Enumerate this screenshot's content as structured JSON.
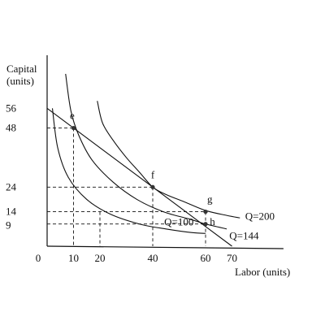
{
  "chart_data": {
    "type": "line",
    "title": "",
    "xlabel": "Labor (units)",
    "ylabel": "Capital (units)",
    "ylabel_lines": [
      "Capital",
      "(units)"
    ],
    "xlim": [
      0,
      90
    ],
    "ylim": [
      0,
      72
    ],
    "x_ticks": [
      {
        "value": 0,
        "label": "0"
      },
      {
        "value": 10,
        "label": "10"
      },
      {
        "value": 20,
        "label": "20"
      },
      {
        "value": 40,
        "label": "40"
      },
      {
        "value": 60,
        "label": "60"
      },
      {
        "value": 70,
        "label": "70"
      }
    ],
    "y_ticks": [
      {
        "value": 9,
        "label": "9"
      },
      {
        "value": 14,
        "label": "14"
      },
      {
        "value": 24,
        "label": "24"
      },
      {
        "value": 48,
        "label": "48"
      },
      {
        "value": 56,
        "label": "56"
      }
    ],
    "grid": false,
    "series": [
      {
        "name": "Q=100",
        "kind": "isoquant",
        "points": [
          [
            2,
            56
          ],
          [
            4,
            40
          ],
          [
            8,
            28
          ],
          [
            15,
            19
          ],
          [
            24,
            13
          ],
          [
            35,
            9
          ],
          [
            45,
            7
          ],
          [
            55,
            5.5
          ],
          [
            60,
            5.2
          ]
        ]
      },
      {
        "name": "Q=144",
        "kind": "isoquant",
        "points": [
          [
            7,
            70
          ],
          [
            9,
            55
          ],
          [
            12,
            45
          ],
          [
            17,
            35
          ],
          [
            25,
            26
          ],
          [
            34,
            19
          ],
          [
            44,
            14
          ],
          [
            54,
            11
          ],
          [
            60,
            9
          ],
          [
            68,
            7
          ]
        ]
      },
      {
        "name": "Q=200",
        "kind": "isoquant",
        "points": [
          [
            19,
            59
          ],
          [
            21,
            50
          ],
          [
            25,
            43
          ],
          [
            30,
            36
          ],
          [
            35,
            30
          ],
          [
            40,
            24
          ],
          [
            45,
            21
          ],
          [
            52,
            18
          ],
          [
            60,
            14.5
          ],
          [
            68,
            12.5
          ],
          [
            73,
            11.5
          ]
        ]
      },
      {
        "name": "",
        "kind": "isocost",
        "points": [
          [
            0,
            56
          ],
          [
            70,
            0
          ]
        ]
      }
    ],
    "points": [
      {
        "label": "e",
        "x": 10,
        "y": 48
      },
      {
        "label": "f",
        "x": 40,
        "y": 24
      },
      {
        "label": "g",
        "x": 60,
        "y": 14
      },
      {
        "label": "h",
        "x": 60,
        "y": 9
      }
    ],
    "dashed_guides": [
      {
        "x": 10,
        "y": 48,
        "vertical": true,
        "horizontal": true
      },
      {
        "x": 20,
        "y": 14,
        "vertical": true,
        "horizontal": false
      },
      {
        "x": 40,
        "y": 24,
        "vertical": true,
        "horizontal": true
      },
      {
        "x": 60,
        "y": 14,
        "vertical": true,
        "horizontal": true
      },
      {
        "x": 60,
        "y": 9,
        "vertical": false,
        "horizontal": true
      }
    ],
    "colors": {
      "line": "#111111",
      "point": "#333333",
      "background": "#ffffff"
    }
  }
}
